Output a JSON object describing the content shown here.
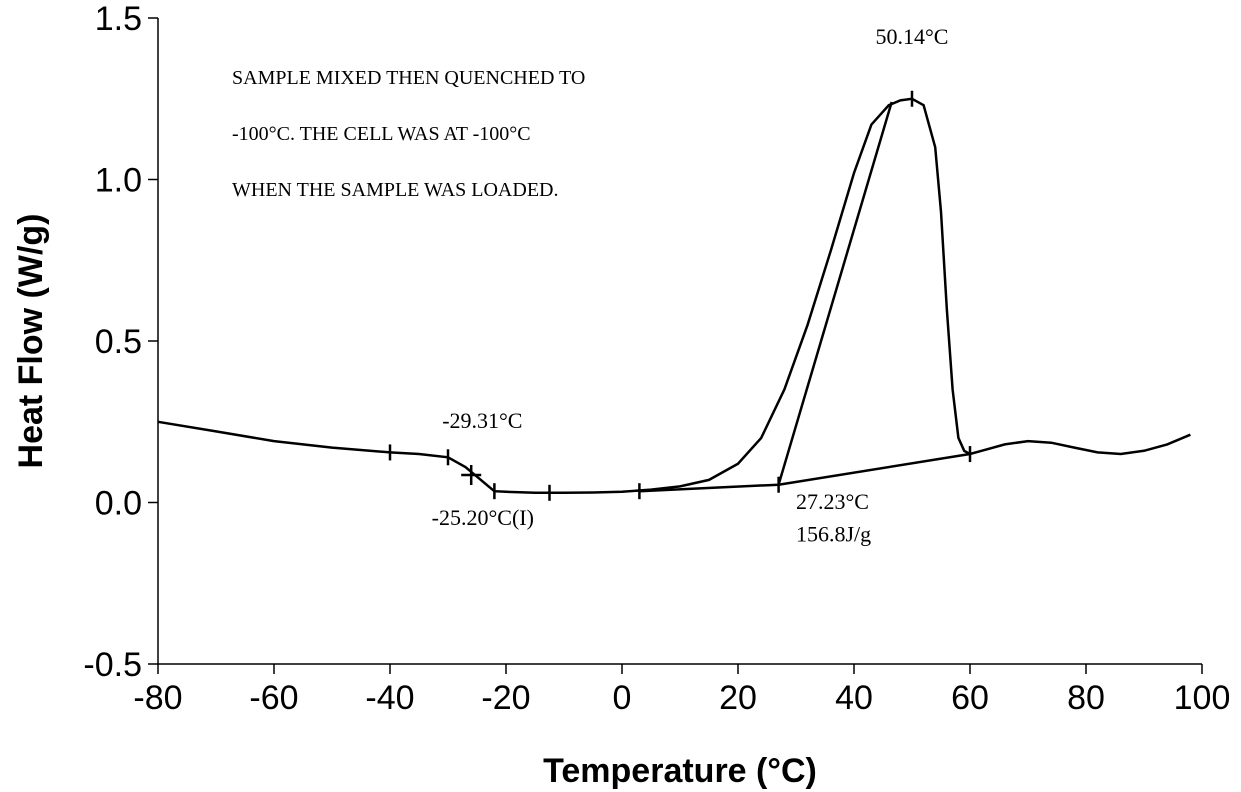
{
  "chart_data": {
    "type": "line",
    "xlabel": "Temperature (°C)",
    "ylabel": "Heat Flow (W/g)",
    "xlim": [
      -80,
      100
    ],
    "ylim": [
      -0.5,
      1.5
    ],
    "x_ticks": [
      "-80",
      "-60",
      "-40",
      "-20",
      "0",
      "20",
      "40",
      "60",
      "80",
      "100"
    ],
    "y_ticks": [
      "-0.5",
      "0.0",
      "0.5",
      "1.0",
      "1.5"
    ],
    "grid": false,
    "series": [
      {
        "x": [
          -80,
          -70,
          -60,
          -50,
          -40,
          -35,
          -30,
          -27,
          -25,
          -23,
          -22,
          -20,
          -15,
          -10,
          -5,
          0,
          5,
          10,
          15,
          20,
          24,
          28,
          32,
          36,
          40,
          43,
          46,
          48,
          50,
          52,
          54,
          55,
          56,
          57,
          58,
          59,
          60,
          62,
          66,
          70,
          74,
          78,
          82,
          86,
          90,
          94,
          98
        ],
        "y": [
          0.25,
          0.22,
          0.19,
          0.17,
          0.155,
          0.15,
          0.14,
          0.11,
          0.08,
          0.05,
          0.035,
          0.033,
          0.03,
          0.03,
          0.031,
          0.033,
          0.04,
          0.05,
          0.07,
          0.12,
          0.2,
          0.35,
          0.55,
          0.78,
          1.02,
          1.17,
          1.23,
          1.245,
          1.25,
          1.23,
          1.1,
          0.9,
          0.6,
          0.35,
          0.2,
          0.16,
          0.15,
          0.16,
          0.18,
          0.19,
          0.185,
          0.17,
          0.155,
          0.15,
          0.16,
          0.18,
          0.21
        ]
      }
    ],
    "baselines": [
      {
        "x": [
          3,
          27,
          60
        ],
        "y": [
          0.035,
          0.055,
          0.15
        ]
      },
      {
        "x": [
          27,
          46.5
        ],
        "y": [
          0.055,
          1.24
        ]
      }
    ],
    "markers": [
      {
        "x": -40,
        "y": 0.155,
        "shape": "tick"
      },
      {
        "x": -30,
        "y": 0.14,
        "shape": "tick"
      },
      {
        "x": -26,
        "y": 0.085,
        "shape": "cross"
      },
      {
        "x": -22,
        "y": 0.035,
        "shape": "tick"
      },
      {
        "x": -12.5,
        "y": 0.03,
        "shape": "tick"
      },
      {
        "x": 3,
        "y": 0.035,
        "shape": "tick"
      },
      {
        "x": 27,
        "y": 0.055,
        "shape": "tick"
      },
      {
        "x": 50,
        "y": 1.25,
        "shape": "tick"
      },
      {
        "x": 60,
        "y": 0.15,
        "shape": "tick"
      }
    ],
    "annotations": [
      {
        "text": "50.14°C",
        "x": 50,
        "y": 1.42,
        "anchor": "middle"
      },
      {
        "text": "-29.31°C",
        "x": -31,
        "y": 0.23,
        "anchor": "start"
      },
      {
        "text": "-25.20°C(I)",
        "x": -24,
        "y": -0.07,
        "anchor": "middle"
      },
      {
        "text": "27.23°C",
        "x": 30,
        "y": -0.02,
        "anchor": "start"
      },
      {
        "text": "156.8J/g",
        "x": 30,
        "y": -0.12,
        "anchor": "start"
      }
    ],
    "note_lines": [
      "SAMPLE MIXED THEN QUENCHED TO",
      "-100°C.  THE CELL WAS AT -100°C",
      "WHEN THE SAMPLE WAS LOADED."
    ]
  }
}
